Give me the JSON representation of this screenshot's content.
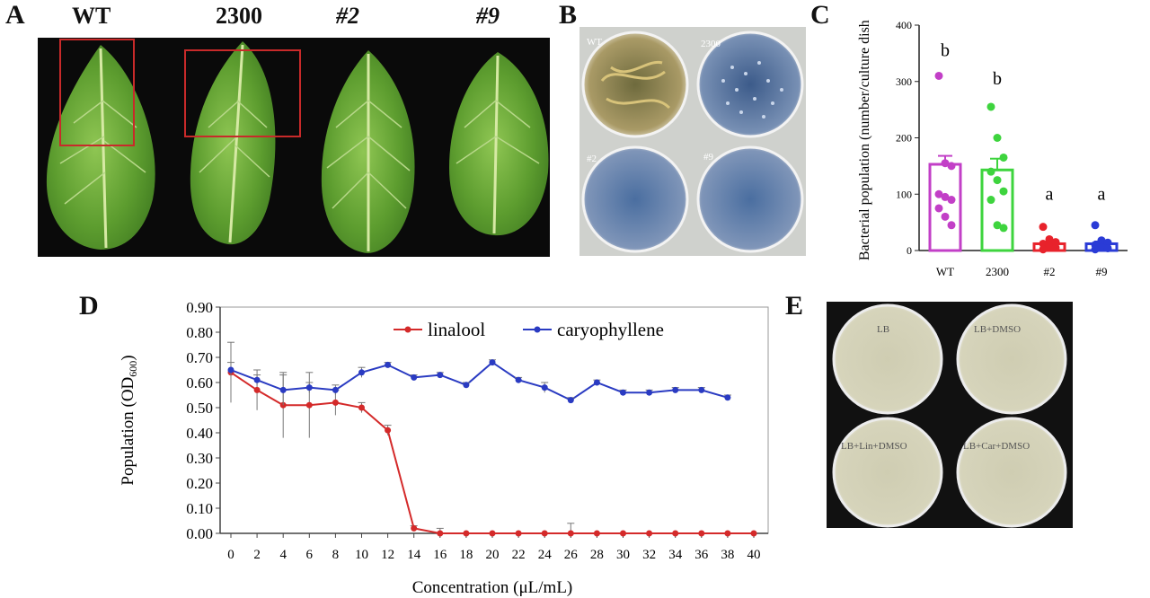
{
  "panel_a": {
    "label": "A",
    "columns": [
      "WT",
      "2300",
      "#2",
      "#9"
    ]
  },
  "panel_b": {
    "label": "B",
    "dish_labels": [
      "WT",
      "2300",
      "#2",
      "#9"
    ]
  },
  "panel_e": {
    "label": "E",
    "dish_labels": [
      "LB",
      "LB+DMSO",
      "LB+Lin+DMSO",
      "LB+Car+DMSO"
    ]
  },
  "chart_data": [
    {
      "panel": "C",
      "type": "bar",
      "xlabel": "",
      "ylabel": "Bacterial population (number/culture dish)",
      "categories": [
        "WT",
        "2300",
        "#2",
        "#9"
      ],
      "values": [
        153,
        143,
        12,
        12
      ],
      "errors": [
        15,
        20,
        4,
        4
      ],
      "letters": [
        "b",
        "b",
        "a",
        "a"
      ],
      "colors": [
        "#c23fc7",
        "#3ed43e",
        "#e8222b",
        "#2a3bd6"
      ],
      "points": [
        [
          310,
          155,
          150,
          100,
          95,
          90,
          75,
          60,
          45
        ],
        [
          255,
          200,
          165,
          140,
          125,
          105,
          90,
          45,
          40
        ],
        [
          42,
          20,
          15,
          12,
          8,
          5,
          2
        ],
        [
          45,
          18,
          14,
          10,
          6,
          4,
          2
        ]
      ],
      "ylim": [
        0,
        400
      ],
      "yticks": [
        0,
        100,
        200,
        300,
        400
      ]
    },
    {
      "panel": "D",
      "type": "line",
      "xlabel": "Concentration (μL/mL)",
      "ylabel": "Population (OD",
      "ylabel_sub": "600",
      "ylabel_end": ")",
      "x": [
        0,
        2,
        4,
        6,
        8,
        10,
        12,
        14,
        16,
        18,
        20,
        22,
        24,
        26,
        28,
        30,
        32,
        34,
        36,
        38,
        40
      ],
      "xlim": [
        0,
        40
      ],
      "ylim": [
        0,
        0.9
      ],
      "yticks": [
        "0.00",
        "0.10",
        "0.20",
        "0.30",
        "0.40",
        "0.50",
        "0.60",
        "0.70",
        "0.80",
        "0.90"
      ],
      "series": [
        {
          "name": "linalool",
          "color": "#d42a2a",
          "values": [
            0.64,
            0.57,
            0.51,
            0.51,
            0.52,
            0.5,
            0.41,
            0.02,
            0.0,
            0.0,
            0.0,
            0.0,
            0.0,
            0.0,
            0.0,
            0.0,
            0.0,
            0.0,
            0.0,
            0.0,
            0.0
          ],
          "errors": [
            0.12,
            0.08,
            0.13,
            0.13,
            0.05,
            0.02,
            0.02,
            0.01,
            0.02,
            0.0,
            0.0,
            0.0,
            0.0,
            0.04,
            0.0,
            0.0,
            0.0,
            0.0,
            0.0,
            0.0,
            0.0
          ]
        },
        {
          "name": "caryophyllene",
          "color": "#2a3bc2",
          "values": [
            0.65,
            0.61,
            0.57,
            0.58,
            0.57,
            0.64,
            0.67,
            0.62,
            0.63,
            0.59,
            0.68,
            0.61,
            0.58,
            0.53,
            0.6,
            0.56,
            0.56,
            0.57,
            0.57,
            0.54,
            null
          ],
          "errors": [
            0.03,
            0.02,
            0.06,
            0.02,
            0.02,
            0.02,
            0.01,
            0.01,
            0.01,
            0.01,
            0.01,
            0.01,
            0.02,
            0.01,
            0.01,
            0.01,
            0.01,
            0.01,
            0.01,
            0.01,
            0.0
          ]
        }
      ],
      "legend_position": "top"
    }
  ]
}
